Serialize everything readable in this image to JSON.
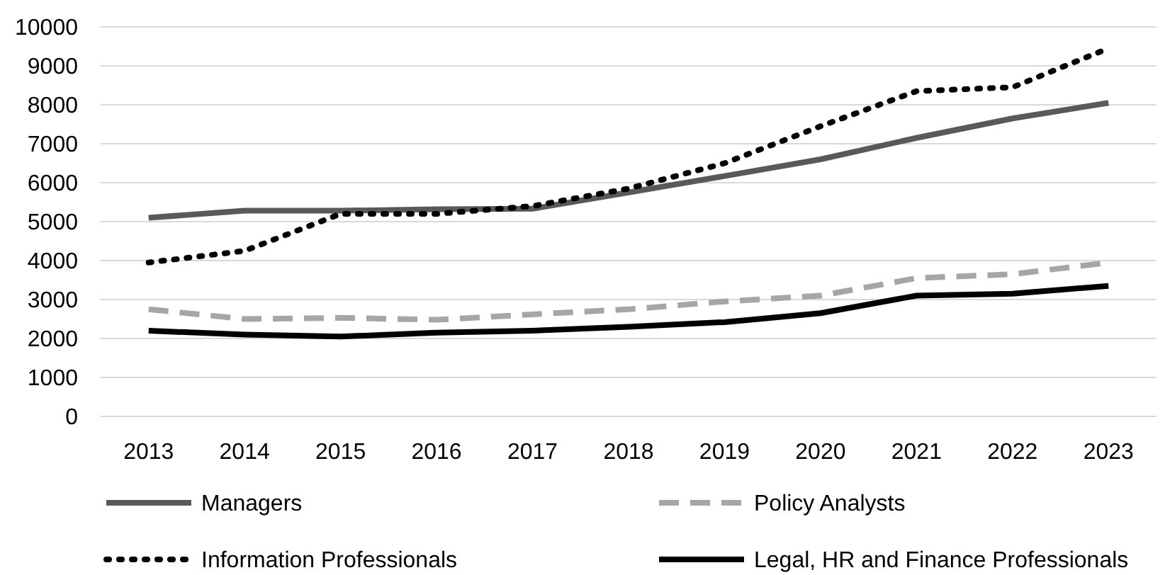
{
  "chart_data": {
    "type": "line",
    "categories": [
      "2013",
      "2014",
      "2015",
      "2016",
      "2017",
      "2018",
      "2019",
      "2020",
      "2021",
      "2022",
      "2023"
    ],
    "series": [
      {
        "name": "Managers",
        "color": "#595959",
        "line_style": "solid",
        "values": [
          5100,
          5280,
          5280,
          5320,
          5330,
          5750,
          6170,
          6600,
          7150,
          7650,
          8050
        ]
      },
      {
        "name": "Policy Analysts",
        "color": "#a6a6a6",
        "line_style": "dashed",
        "values": [
          2750,
          2500,
          2530,
          2480,
          2620,
          2750,
          2950,
          3100,
          3550,
          3650,
          3950
        ]
      },
      {
        "name": "Information Professionals",
        "color": "#000000",
        "line_style": "dotted",
        "values": [
          3950,
          4250,
          5200,
          5200,
          5400,
          5850,
          6500,
          7450,
          8350,
          8450,
          9450
        ]
      },
      {
        "name": "Legal, HR and Finance Professionals",
        "color": "#000000",
        "line_style": "solid",
        "values": [
          2200,
          2100,
          2050,
          2150,
          2200,
          2300,
          2420,
          2650,
          3100,
          3150,
          3350
        ]
      }
    ],
    "ylim": [
      0,
      10000
    ],
    "yticks": [
      0,
      1000,
      2000,
      3000,
      4000,
      5000,
      6000,
      7000,
      8000,
      9000,
      10000
    ],
    "grid": "y",
    "legend": "bottom",
    "marker": "none"
  }
}
